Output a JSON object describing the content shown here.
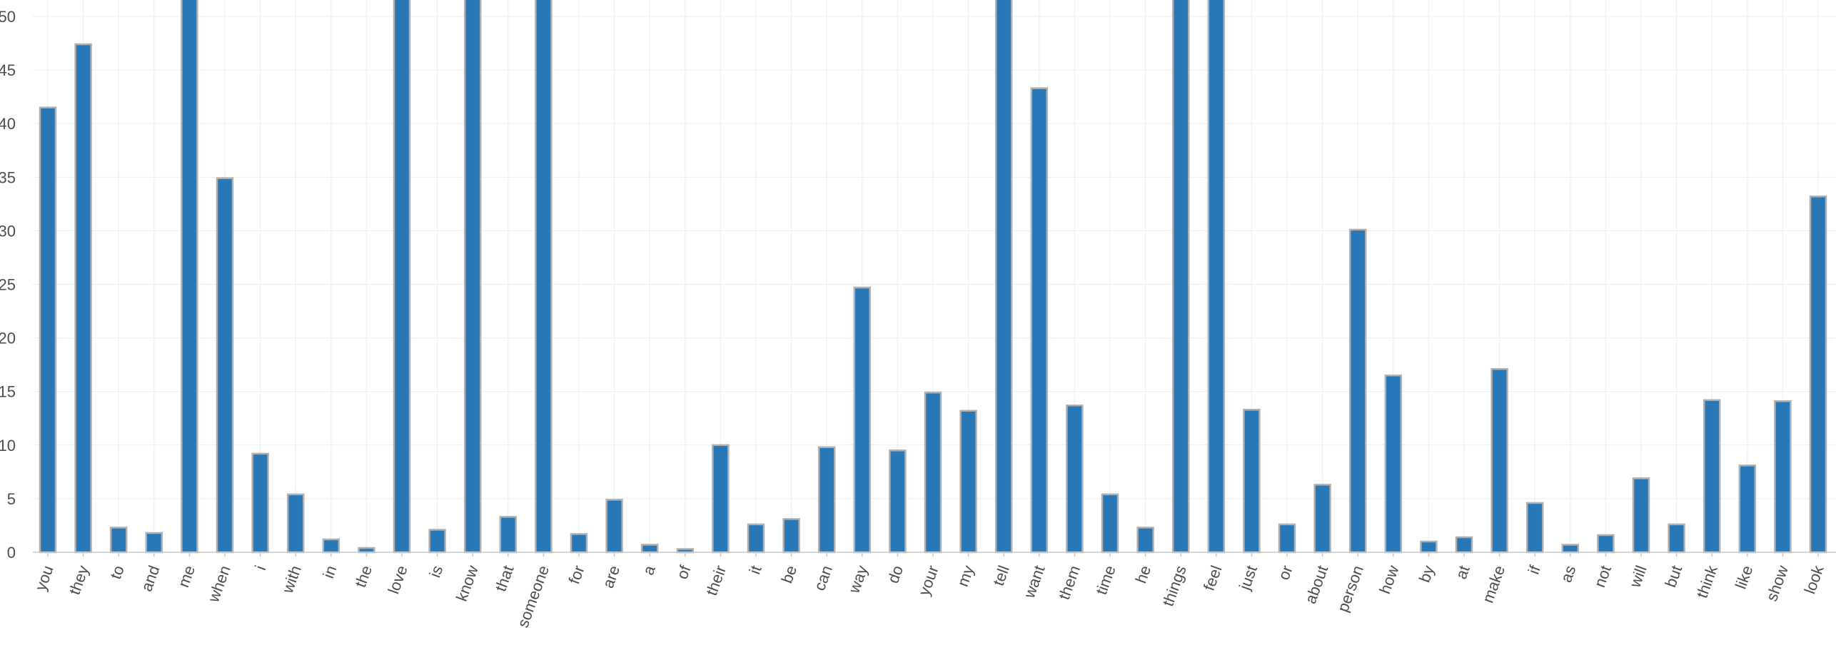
{
  "chart_data": {
    "type": "bar",
    "title": "",
    "xlabel": "",
    "ylabel": "",
    "ylim": [
      0,
      50
    ],
    "yticks": [
      0,
      5,
      10,
      15,
      20,
      25,
      30,
      35,
      40,
      45,
      50
    ],
    "grid": true,
    "bar_color": "#2878b8",
    "bar_edge_color": "#b0b0b0",
    "grid_color": "#ebebeb",
    "categories": [
      "you",
      "they",
      "to",
      "and",
      "me",
      "when",
      "i",
      "with",
      "in",
      "the",
      "love",
      "is",
      "know",
      "that",
      "someone",
      "for",
      "are",
      "a",
      "of",
      "their",
      "it",
      "be",
      "can",
      "way",
      "do",
      "your",
      "my",
      "tell",
      "want",
      "them",
      "time",
      "he",
      "things",
      "feel",
      "just",
      "or",
      "about",
      "person",
      "how",
      "by",
      "at",
      "make",
      "if",
      "as",
      "not",
      "will",
      "but",
      "think",
      "like",
      "show",
      "look"
    ],
    "values": [
      41.5,
      47.4,
      2.3,
      1.8,
      52.0,
      34.9,
      9.2,
      5.4,
      1.2,
      0.4,
      52.0,
      2.1,
      52.0,
      3.3,
      52.0,
      1.7,
      4.9,
      0.7,
      0.3,
      10.0,
      2.6,
      3.1,
      9.8,
      24.7,
      9.5,
      14.9,
      13.2,
      52.0,
      43.3,
      13.7,
      5.4,
      2.3,
      52.0,
      52.0,
      13.3,
      2.6,
      6.3,
      30.1,
      16.5,
      1.0,
      1.4,
      17.1,
      4.6,
      0.7,
      1.6,
      6.9,
      2.6,
      14.2,
      8.1,
      14.1,
      33.2
    ]
  }
}
